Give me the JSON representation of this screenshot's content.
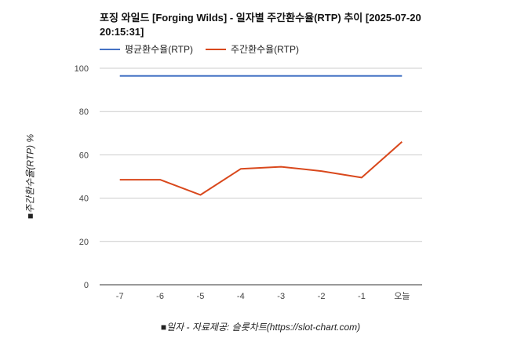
{
  "chart_data": {
    "type": "line",
    "title": "포징 와일드 [Forging Wilds] - 일자별 주간환수율(RTP) 추이 [2025-07-20 20:15:31]",
    "xlabel": "■일자 - 자료제공: 슬롯차트(https://slot-chart.com)",
    "ylabel": "■주간환수율(RTP) %",
    "categories": [
      "-7",
      "-6",
      "-5",
      "-4",
      "-3",
      "-2",
      "-1",
      "오늘"
    ],
    "ylim": [
      0,
      100
    ],
    "yticks": [
      0,
      20,
      40,
      60,
      80,
      100
    ],
    "grid": true,
    "legend_position": "top-left",
    "series": [
      {
        "name": "평균환수율(RTP)",
        "color": "#4472c4",
        "values": [
          96.5,
          96.5,
          96.5,
          96.5,
          96.5,
          96.5,
          96.5,
          96.5
        ]
      },
      {
        "name": "주간환수율(RTP)",
        "color": "#d9481c",
        "values": [
          48.5,
          48.5,
          41.5,
          53.5,
          54.5,
          52.5,
          49.5,
          66.0
        ]
      }
    ]
  }
}
